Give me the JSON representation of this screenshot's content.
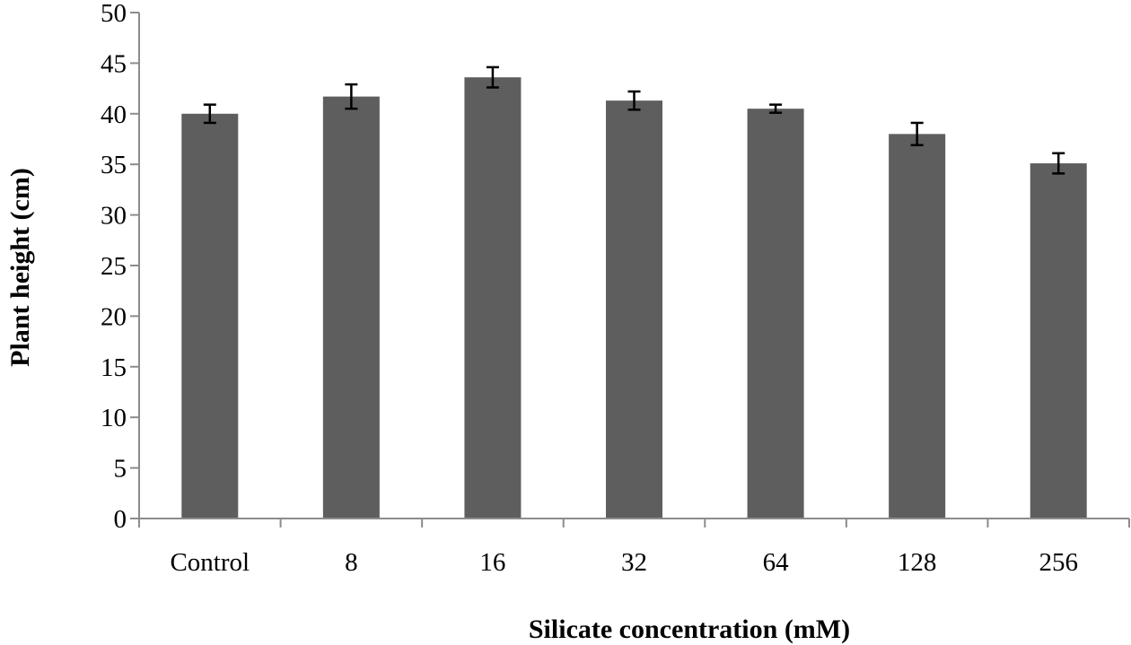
{
  "chart_data": {
    "type": "bar",
    "title": "",
    "xlabel": "Silicate concentration (mM)",
    "ylabel": "Plant height (cm)",
    "categories": [
      "Control",
      "8",
      "16",
      "32",
      "64",
      "128",
      "256"
    ],
    "values": [
      40.0,
      41.7,
      43.6,
      41.3,
      40.5,
      38.0,
      35.1
    ],
    "error": [
      0.9,
      1.2,
      1.0,
      0.9,
      0.4,
      1.1,
      1.0
    ],
    "ylim": [
      0,
      50
    ],
    "yticks": [
      "0",
      "5",
      "10",
      "15",
      "20",
      "25",
      "30",
      "35",
      "40",
      "45",
      "50"
    ],
    "grid": false,
    "legend": "none",
    "colors": {
      "bar": "#5e5e5e",
      "axis": "#8c8c8c",
      "error_bar": "#000000"
    }
  }
}
